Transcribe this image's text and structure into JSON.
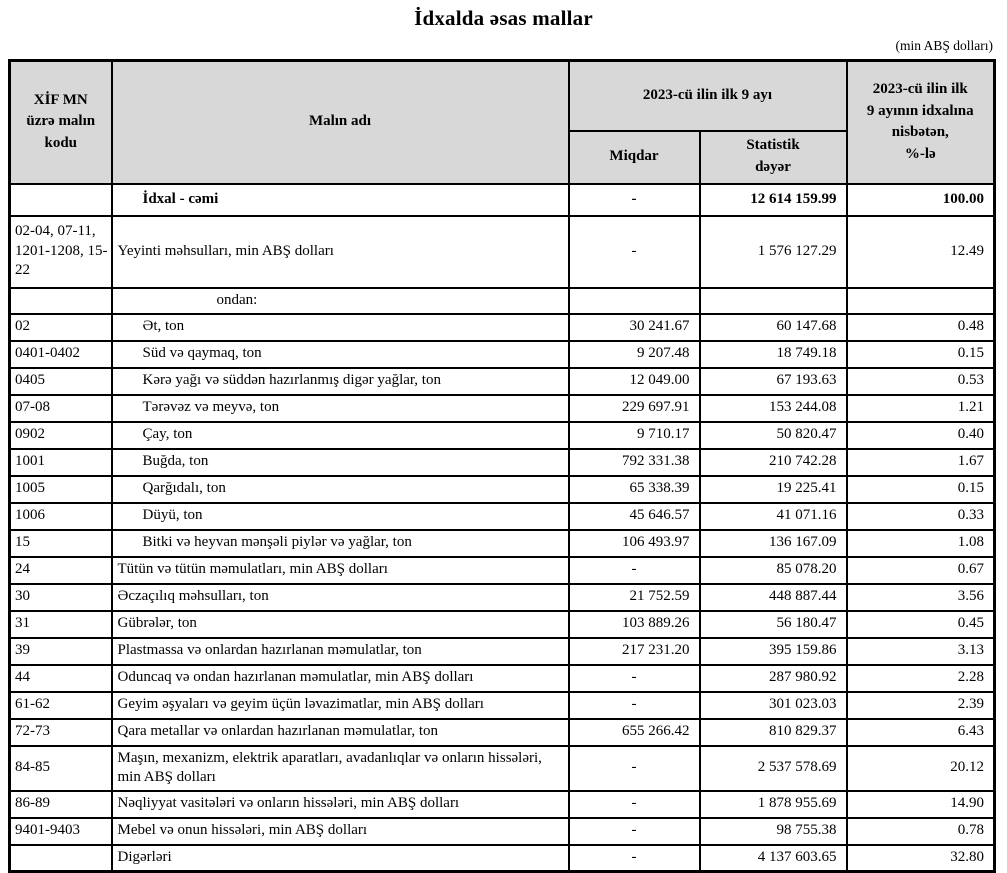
{
  "page": {
    "title": "İdxalda əsas mallar",
    "unit_note": "(min ABŞ dolları)"
  },
  "colors": {
    "header_bg": "#d8d8d8",
    "border": "#000000",
    "text": "#000000"
  },
  "table": {
    "header": {
      "code": "XİF MN\nüzrə malın\nkodu",
      "name": "Malın adı",
      "period": "2023-cü ilin ilk 9 ayı",
      "quantity": "Miqdar",
      "value": "Statistik\ndəyər",
      "share": "2023-cü ilin ilk\n9 ayının idxalına\nnisbətən,\n%-lə"
    },
    "rows": [
      {
        "code": "",
        "name": "İdxal - cəmi",
        "qty": "-",
        "value": "12 614 159.99",
        "pct": "100.00",
        "kind": "total",
        "level": 1,
        "bold": true
      },
      {
        "code": "02-04, 07-11, 1201-1208, 15-22",
        "name": "Yeyinti məhsulları, min ABŞ dolları",
        "qty": "-",
        "value": "1 576 127.29",
        "pct": "12.49",
        "kind": "group",
        "level": 0
      },
      {
        "code": "",
        "name": "ondan:",
        "qty": "",
        "value": "",
        "pct": "",
        "kind": "subhead",
        "level": 2
      },
      {
        "code": "02",
        "name": "Ət, ton",
        "qty": "30 241.67",
        "value": "60 147.68",
        "pct": "0.48",
        "level": 1
      },
      {
        "code": "0401-0402",
        "name": "Süd və qaymaq, ton",
        "qty": "9 207.48",
        "value": "18 749.18",
        "pct": "0.15",
        "level": 1
      },
      {
        "code": "0405",
        "name": "Kərə yağı və süddən hazırlanmış digər yağlar, ton",
        "qty": "12 049.00",
        "value": "67 193.63",
        "pct": "0.53",
        "level": 1
      },
      {
        "code": "07-08",
        "name": "Tərəvəz və meyvə, ton",
        "qty": "229 697.91",
        "value": "153 244.08",
        "pct": "1.21",
        "level": 1
      },
      {
        "code": "0902",
        "name": "Çay, ton",
        "qty": "9 710.17",
        "value": "50 820.47",
        "pct": "0.40",
        "level": 1
      },
      {
        "code": "1001",
        "name": "Buğda, ton",
        "qty": "792 331.38",
        "value": "210 742.28",
        "pct": "1.67",
        "level": 1
      },
      {
        "code": "1005",
        "name": "Qarğıdalı, ton",
        "qty": "65 338.39",
        "value": "19 225.41",
        "pct": "0.15",
        "level": 1
      },
      {
        "code": "1006",
        "name": "Düyü, ton",
        "qty": "45 646.57",
        "value": "41 071.16",
        "pct": "0.33",
        "level": 1
      },
      {
        "code": "15",
        "name": "Bitki və heyvan mənşəli piylər və yağlar, ton",
        "qty": "106 493.97",
        "value": "136 167.09",
        "pct": "1.08",
        "level": 1
      },
      {
        "code": "24",
        "name": "Tütün və tütün məmulatları, min ABŞ dolları",
        "qty": "-",
        "value": "85 078.20",
        "pct": "0.67",
        "level": 0
      },
      {
        "code": "30",
        "name": "Əczaçılıq məhsulları, ton",
        "qty": "21 752.59",
        "value": "448 887.44",
        "pct": "3.56",
        "level": 0
      },
      {
        "code": "31",
        "name": "Gübrələr, ton",
        "qty": "103 889.26",
        "value": "56 180.47",
        "pct": "0.45",
        "level": 0
      },
      {
        "code": "39",
        "name": "Plastmassa və onlardan hazırlanan məmulatlar, ton",
        "qty": "217 231.20",
        "value": "395 159.86",
        "pct": "3.13",
        "level": 0
      },
      {
        "code": "44",
        "name": "Oduncaq və ondan hazırlanan məmulatlar, min ABŞ dolları",
        "qty": "-",
        "value": "287 980.92",
        "pct": "2.28",
        "level": 0
      },
      {
        "code": "61-62",
        "name": "Geyim əşyaları və geyim üçün ləvazimatlar, min ABŞ dolları",
        "qty": "-",
        "value": "301 023.03",
        "pct": "2.39",
        "level": 0
      },
      {
        "code": "72-73",
        "name": "Qara metallar və onlardan hazırlanan məmulatlar, ton",
        "qty": "655 266.42",
        "value": "810 829.37",
        "pct": "6.43",
        "level": 0
      },
      {
        "code": "84-85",
        "name": "Maşın, mexanizm, elektrik aparatları, avadanlıqlar və onların hissələri, min ABŞ dolları",
        "qty": "-",
        "value": "2 537 578.69",
        "pct": "20.12",
        "level": 0
      },
      {
        "code": "86-89",
        "name": "Nəqliyyat vasitələri və onların hissələri, min ABŞ dolları",
        "qty": "-",
        "value": "1 878 955.69",
        "pct": "14.90",
        "level": 0
      },
      {
        "code": "9401-9403",
        "name": "Mebel və onun hissələri, min ABŞ dolları",
        "qty": "-",
        "value": "98 755.38",
        "pct": "0.78",
        "level": 0
      },
      {
        "code": "",
        "name": "Digərləri",
        "qty": "-",
        "value": "4 137 603.65",
        "pct": "32.80",
        "level": 0
      }
    ]
  }
}
